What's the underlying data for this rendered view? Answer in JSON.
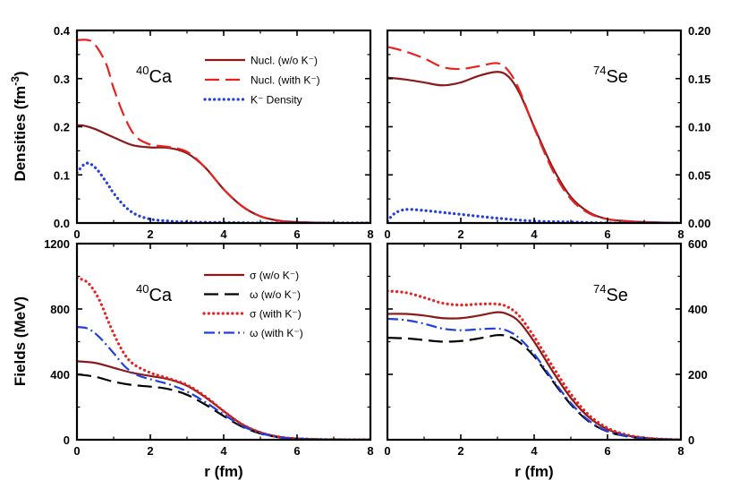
{
  "figure": {
    "x_label": "r (fm)",
    "y_label_top": "Densities (fm",
    "y_label_top_exp": "-3",
    "y_label_top_close": ")",
    "y_label_bottom": "Fields (MeV)"
  },
  "colors": {
    "dark_red": "#8b1a1a",
    "red": "#e8221f",
    "blue": "#1f3fe0",
    "black": "#000000"
  },
  "chart_data": [
    {
      "type": "line",
      "id": "densities-ca",
      "nucleus": {
        "mass": "40",
        "symbol": "Ca"
      },
      "xlim": [
        0,
        8
      ],
      "ylim": [
        0,
        0.4
      ],
      "x_ticks": [
        "0",
        "2",
        "4",
        "6",
        "8"
      ],
      "y_ticks": [
        "0.0",
        "0.1",
        "0.2",
        "0.3",
        "0.4"
      ],
      "y_tick_values": [
        0,
        0.1,
        0.2,
        0.3,
        0.4
      ],
      "y_ticks_side": "left",
      "legend": {
        "placement": "top-right",
        "entries": [
          {
            "label": "Nucl. (w/o K⁻)",
            "style": "solid",
            "color": "#8b1a1a"
          },
          {
            "label": "Nucl. (with K⁻)",
            "style": "dashed",
            "color": "#e8221f"
          },
          {
            "label": "K⁻ Density",
            "style": "dotted",
            "color": "#1f3fe0"
          }
        ]
      },
      "series": [
        {
          "name": "Nucl. (w/o K⁻)",
          "style": "solid",
          "color": "#8b1a1a",
          "x": [
            0,
            0.2,
            0.5,
            1,
            1.5,
            2,
            2.5,
            3,
            3.5,
            4,
            4.5,
            5,
            5.5,
            6,
            7,
            8
          ],
          "y": [
            0.203,
            0.202,
            0.195,
            0.178,
            0.162,
            0.157,
            0.156,
            0.145,
            0.115,
            0.07,
            0.035,
            0.014,
            0.005,
            0.002,
            0,
            0
          ]
        },
        {
          "name": "Nucl. (with K⁻)",
          "style": "dashed",
          "color": "#e8221f",
          "x": [
            0,
            0.3,
            0.5,
            0.8,
            1,
            1.3,
            1.6,
            2,
            2.5,
            3,
            3.5,
            4,
            4.5,
            5,
            5.5,
            6,
            7,
            8
          ],
          "y": [
            0.38,
            0.38,
            0.37,
            0.33,
            0.28,
            0.22,
            0.18,
            0.163,
            0.158,
            0.148,
            0.115,
            0.07,
            0.035,
            0.014,
            0.005,
            0.002,
            0,
            0
          ]
        },
        {
          "name": "K⁻ Density",
          "style": "dotted",
          "color": "#1f3fe0",
          "x": [
            0,
            0.25,
            0.5,
            0.8,
            1,
            1.3,
            1.6,
            2,
            2.5,
            3,
            4,
            5,
            6,
            7,
            8
          ],
          "y": [
            0.105,
            0.124,
            0.115,
            0.085,
            0.062,
            0.035,
            0.018,
            0.008,
            0.004,
            0.002,
            0.001,
            0,
            0,
            0,
            0
          ]
        }
      ]
    },
    {
      "type": "line",
      "id": "densities-se",
      "nucleus": {
        "mass": "74",
        "symbol": "Se"
      },
      "xlim": [
        0,
        8
      ],
      "ylim": [
        0,
        0.2
      ],
      "x_ticks": [
        "0",
        "2",
        "4",
        "6",
        "8"
      ],
      "y_ticks": [
        "0.00",
        "0.05",
        "0.10",
        "0.15",
        "0.20"
      ],
      "y_tick_values": [
        0,
        0.05,
        0.1,
        0.15,
        0.2
      ],
      "y_ticks_side": "right",
      "series": [
        {
          "name": "Nucl. (w/o K⁻)",
          "style": "solid",
          "color": "#8b1a1a",
          "x": [
            0,
            0.5,
            1,
            1.5,
            2,
            2.5,
            3,
            3.3,
            3.6,
            4,
            4.5,
            5,
            5.5,
            6,
            6.5,
            7,
            8
          ],
          "y": [
            0.151,
            0.149,
            0.146,
            0.143,
            0.146,
            0.153,
            0.157,
            0.152,
            0.135,
            0.1,
            0.058,
            0.027,
            0.011,
            0.004,
            0.002,
            0.001,
            0
          ]
        },
        {
          "name": "Nucl. (with K⁻)",
          "style": "dashed",
          "color": "#e8221f",
          "x": [
            0,
            0.5,
            1,
            1.5,
            2,
            2.5,
            3,
            3.3,
            3.6,
            4,
            4.5,
            5,
            5.5,
            6,
            6.5,
            7,
            8
          ],
          "y": [
            0.183,
            0.178,
            0.171,
            0.162,
            0.16,
            0.163,
            0.166,
            0.158,
            0.138,
            0.099,
            0.055,
            0.025,
            0.01,
            0.004,
            0.002,
            0.001,
            0
          ]
        },
        {
          "name": "K⁻ Density",
          "style": "dotted",
          "color": "#1f3fe0",
          "x": [
            0,
            0.2,
            0.5,
            1,
            1.5,
            2,
            3,
            4,
            5,
            6,
            7,
            8
          ],
          "y": [
            0.002,
            0.01,
            0.014,
            0.013,
            0.011,
            0.009,
            0.005,
            0.002,
            0.001,
            0,
            0,
            0
          ]
        }
      ]
    },
    {
      "type": "line",
      "id": "fields-ca",
      "nucleus": {
        "mass": "40",
        "symbol": "Ca"
      },
      "xlim": [
        0,
        8
      ],
      "ylim": [
        0,
        1200
      ],
      "x_ticks": [
        "0",
        "2",
        "4",
        "6",
        "8"
      ],
      "y_ticks": [
        "0",
        "400",
        "800",
        "1200"
      ],
      "y_tick_values": [
        0,
        400,
        800,
        1200
      ],
      "y_ticks_side": "left",
      "legend": {
        "placement": "top-right",
        "entries": [
          {
            "label": "σ (w/o K⁻)",
            "style": "solid",
            "color": "#8b1a1a"
          },
          {
            "label": "ω (w/o K⁻)",
            "style": "dashed",
            "color": "#000000"
          },
          {
            "label": "σ (with K⁻)",
            "style": "dotted",
            "color": "#e8221f"
          },
          {
            "label": "ω (with K⁻)",
            "style": "dashdot",
            "color": "#1f3fe0"
          }
        ]
      },
      "series": [
        {
          "name": "σ (w/o K⁻)",
          "style": "solid",
          "color": "#8b1a1a",
          "x": [
            0,
            0.5,
            1,
            1.5,
            2,
            2.5,
            3,
            3.5,
            4,
            4.5,
            5,
            5.5,
            6,
            7,
            8
          ],
          "y": [
            480,
            470,
            440,
            410,
            390,
            370,
            330,
            260,
            175,
            95,
            45,
            18,
            7,
            1,
            0
          ]
        },
        {
          "name": "ω (w/o K⁻)",
          "style": "dashed",
          "color": "#000000",
          "x": [
            0,
            0.5,
            1,
            1.5,
            2,
            2.5,
            3,
            3.5,
            4,
            4.5,
            5,
            5.5,
            6,
            7,
            8
          ],
          "y": [
            400,
            385,
            355,
            335,
            325,
            310,
            275,
            215,
            145,
            80,
            38,
            15,
            6,
            1,
            0
          ]
        },
        {
          "name": "σ (with K⁻)",
          "style": "dotted",
          "color": "#e8221f",
          "x": [
            0,
            0.3,
            0.6,
            0.9,
            1.2,
            1.5,
            2,
            2.5,
            3,
            3.5,
            4,
            4.5,
            5,
            5.5,
            6,
            7,
            8
          ],
          "y": [
            990,
            960,
            860,
            700,
            560,
            470,
            410,
            375,
            335,
            265,
            175,
            95,
            45,
            18,
            7,
            1,
            0
          ]
        },
        {
          "name": "ω (with K⁻)",
          "style": "dashdot",
          "color": "#1f3fe0",
          "x": [
            0,
            0.3,
            0.6,
            1,
            1.3,
            1.6,
            2,
            2.5,
            3,
            3.5,
            4,
            4.5,
            5,
            5.5,
            6,
            7,
            8
          ],
          "y": [
            690,
            680,
            630,
            530,
            450,
            400,
            370,
            340,
            295,
            230,
            155,
            85,
            40,
            16,
            6,
            1,
            0
          ]
        }
      ]
    },
    {
      "type": "line",
      "id": "fields-se",
      "nucleus": {
        "mass": "74",
        "symbol": "Se"
      },
      "xlim": [
        0,
        8
      ],
      "ylim": [
        0,
        600
      ],
      "x_ticks": [
        "0",
        "2",
        "4",
        "6",
        "8"
      ],
      "y_ticks": [
        "0",
        "200",
        "400",
        "600"
      ],
      "y_tick_values": [
        0,
        200,
        400,
        600
      ],
      "y_ticks_side": "right",
      "series": [
        {
          "name": "σ (w/o K⁻)",
          "style": "solid",
          "color": "#8b1a1a",
          "x": [
            0,
            0.5,
            1,
            1.5,
            2,
            2.5,
            3,
            3.3,
            3.6,
            4,
            4.5,
            5,
            5.5,
            6,
            6.5,
            7,
            7.5,
            8
          ],
          "y": [
            385,
            385,
            380,
            372,
            372,
            380,
            390,
            383,
            360,
            300,
            210,
            128,
            68,
            32,
            14,
            6,
            2,
            0
          ]
        },
        {
          "name": "ω (w/o K⁻)",
          "style": "dashed",
          "color": "#000000",
          "x": [
            0,
            0.5,
            1,
            1.5,
            2,
            2.5,
            3,
            3.3,
            3.6,
            4,
            4.5,
            5,
            5.5,
            6,
            6.5,
            7,
            7.5,
            8
          ],
          "y": [
            312,
            310,
            305,
            300,
            302,
            310,
            320,
            316,
            298,
            255,
            180,
            108,
            55,
            25,
            11,
            4,
            1,
            0
          ]
        },
        {
          "name": "σ (with K⁻)",
          "style": "dotted",
          "color": "#e8221f",
          "x": [
            0,
            0.5,
            1,
            1.5,
            2,
            2.5,
            3,
            3.3,
            3.6,
            4,
            4.5,
            5,
            5.5,
            6,
            6.5,
            7,
            7.5,
            8
          ],
          "y": [
            455,
            450,
            435,
            418,
            412,
            415,
            415,
            405,
            378,
            315,
            225,
            140,
            75,
            36,
            16,
            6,
            2,
            0
          ]
        },
        {
          "name": "ω (with K⁻)",
          "style": "dashdot",
          "color": "#1f3fe0",
          "x": [
            0,
            0.5,
            1,
            1.5,
            2,
            2.5,
            3,
            3.3,
            3.6,
            4,
            4.5,
            5,
            5.5,
            6,
            6.5,
            7,
            7.5,
            8
          ],
          "y": [
            370,
            366,
            355,
            340,
            335,
            338,
            340,
            332,
            310,
            262,
            185,
            112,
            58,
            26,
            12,
            4,
            1,
            0
          ]
        }
      ]
    }
  ]
}
